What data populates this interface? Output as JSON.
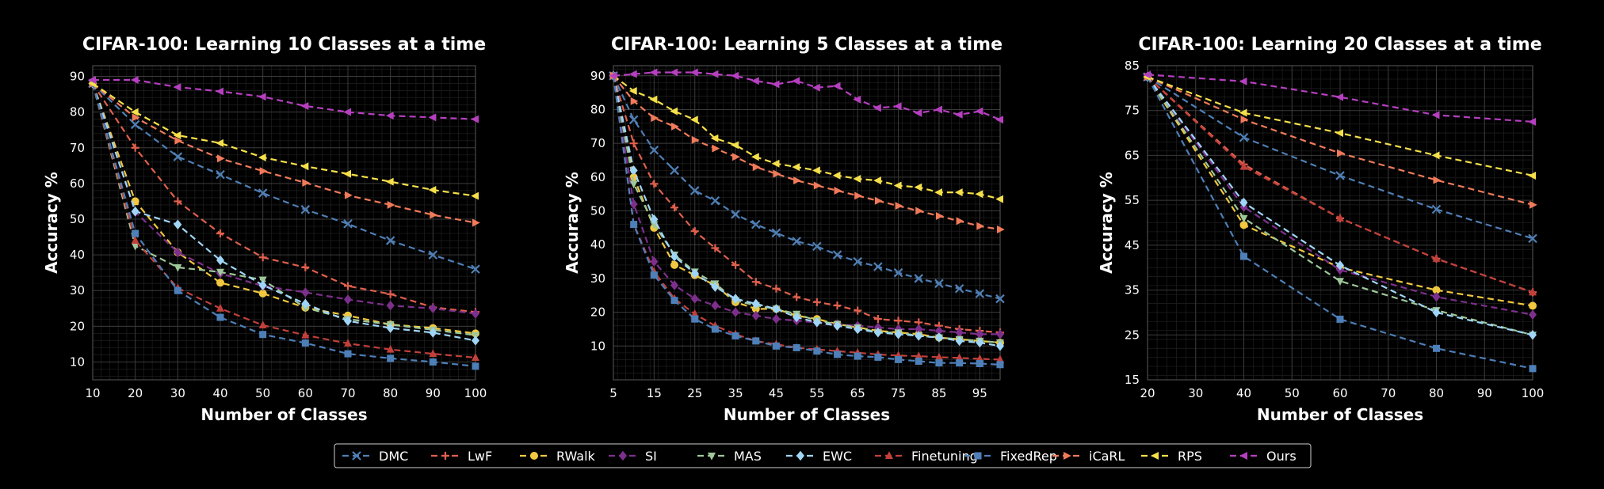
{
  "styles": [
    {
      "name": "DMC",
      "color": "#4f7fb5",
      "marker": "x",
      "dash": "8,5"
    },
    {
      "name": "LwF",
      "color": "#e0604d",
      "marker": "plus",
      "dash": "8,5"
    },
    {
      "name": "RWalk",
      "color": "#f1c83f",
      "marker": "circle",
      "dash": "8,5"
    },
    {
      "name": "SI",
      "color": "#7d2f8c",
      "marker": "diamond",
      "dash": "8,5"
    },
    {
      "name": "MAS",
      "color": "#9fc79a",
      "marker": "triangle-down",
      "dash": "8,5"
    },
    {
      "name": "EWC",
      "color": "#9fd5f7",
      "marker": "diamond",
      "dash": "8,5"
    },
    {
      "name": "Finetuning",
      "color": "#c1403b",
      "marker": "triangle-up",
      "dash": "8,5"
    },
    {
      "name": "FixedRep",
      "color": "#4d7fb8",
      "marker": "square",
      "dash": "8,5"
    },
    {
      "name": "iCaRL",
      "color": "#f07a5a",
      "marker": "triangle-right",
      "dash": "8,5"
    },
    {
      "name": "RPS",
      "color": "#f5e04a",
      "marker": "triangle-left",
      "dash": "8,5"
    },
    {
      "name": "Ours",
      "color": "#b63fc0",
      "marker": "triangle-left",
      "dash": "8,5"
    }
  ],
  "legend": {
    "placement": "bottom-center",
    "items": [
      "DMC",
      "LwF",
      "RWalk",
      "SI",
      "MAS",
      "EWC",
      "Finetuning",
      "FixedRep",
      "iCaRL",
      "RPS",
      "Ours"
    ]
  },
  "chart_data": [
    {
      "type": "line",
      "title": "CIFAR-100: Learning 10 Classes at a time",
      "xlabel": "Number of Classes",
      "ylabel": "Accuracy %",
      "xlim": [
        10,
        100
      ],
      "ylim": [
        5,
        93
      ],
      "xticks": [
        10,
        20,
        30,
        40,
        50,
        60,
        70,
        80,
        90,
        100
      ],
      "yticks": [
        10,
        20,
        30,
        40,
        50,
        60,
        70,
        80,
        90
      ],
      "grid": true,
      "x": [
        10,
        20,
        30,
        40,
        50,
        60,
        70,
        80,
        90,
        100
      ],
      "series": [
        {
          "name": "DMC",
          "values": [
            88,
            76.5,
            67.5,
            62.5,
            57.3,
            52.7,
            48.7,
            44,
            40,
            36
          ]
        },
        {
          "name": "LwF",
          "values": [
            88,
            70,
            55,
            46,
            39.3,
            36.5,
            31.3,
            29,
            25.3,
            24
          ]
        },
        {
          "name": "RWalk",
          "values": [
            88,
            55,
            40.7,
            32.2,
            29.2,
            25.2,
            23,
            20.5,
            19.5,
            18
          ]
        },
        {
          "name": "SI",
          "values": [
            88,
            52,
            40.7,
            34.8,
            31.3,
            29.5,
            27.5,
            25.8,
            25,
            23.5
          ]
        },
        {
          "name": "MAS",
          "values": [
            88,
            42.5,
            36.5,
            35.2,
            33,
            25.2,
            22,
            20.5,
            19,
            17.5
          ]
        },
        {
          "name": "EWC",
          "values": [
            88,
            52.2,
            48.5,
            38.5,
            31.5,
            26.3,
            21.5,
            19.5,
            18.2,
            16
          ]
        },
        {
          "name": "Finetuning",
          "values": [
            88,
            44,
            30.7,
            25,
            20.3,
            17.5,
            15.2,
            13.5,
            12.3,
            11.2
          ]
        },
        {
          "name": "FixedRep",
          "values": [
            88,
            46,
            30,
            22.5,
            17.7,
            15.3,
            12.3,
            11,
            10,
            8.8
          ]
        },
        {
          "name": "iCaRL",
          "values": [
            88,
            78.5,
            72,
            67,
            63.5,
            60.2,
            56.7,
            54,
            51.2,
            49
          ]
        },
        {
          "name": "RPS",
          "values": [
            88,
            80,
            73.5,
            71.3,
            67.3,
            64.8,
            62.7,
            60.5,
            58.2,
            56.5
          ]
        },
        {
          "name": "Ours",
          "values": [
            89,
            89,
            87,
            85.8,
            84.3,
            81.7,
            80,
            79,
            78.5,
            78
          ]
        }
      ]
    },
    {
      "type": "line",
      "title": "CIFAR-100: Learning 5 Classes at a time",
      "xlabel": "Number of Classes",
      "ylabel": "Accuracy %",
      "xlim": [
        5,
        100
      ],
      "ylim": [
        0,
        93
      ],
      "xticks": [
        5,
        15,
        25,
        35,
        45,
        55,
        65,
        75,
        85,
        95
      ],
      "yticks": [
        10,
        20,
        30,
        40,
        50,
        60,
        70,
        80,
        90
      ],
      "grid": true,
      "x": [
        5,
        10,
        15,
        20,
        25,
        30,
        35,
        40,
        45,
        50,
        55,
        60,
        65,
        70,
        75,
        80,
        85,
        90,
        95,
        100
      ],
      "series": [
        {
          "name": "DMC",
          "values": [
            90,
            77,
            68,
            62,
            56,
            53,
            49,
            46,
            43.5,
            41,
            39.5,
            37,
            35,
            33.5,
            31.7,
            30,
            28.5,
            27,
            25.5,
            24
          ]
        },
        {
          "name": "LwF",
          "values": [
            90,
            70,
            58,
            51,
            44,
            39,
            34,
            29,
            27,
            24.5,
            23,
            22,
            20.5,
            18,
            17.5,
            17,
            16,
            15,
            14.5,
            14
          ]
        },
        {
          "name": "RWalk",
          "values": [
            90,
            60,
            45,
            34,
            31,
            28,
            23,
            21,
            21,
            19,
            18,
            16.5,
            15.5,
            14.5,
            14,
            13.5,
            12.5,
            12,
            11.5,
            11
          ]
        },
        {
          "name": "SI",
          "values": [
            90,
            52,
            35,
            28,
            24,
            22,
            20,
            19,
            18,
            17.5,
            17,
            16.5,
            16,
            15.5,
            15,
            15,
            14.5,
            14,
            13.5,
            13.5
          ]
        },
        {
          "name": "MAS",
          "values": [
            90,
            58,
            46,
            37,
            32,
            28.5,
            23.5,
            22,
            21,
            19.5,
            17.5,
            16.5,
            15.5,
            14,
            14,
            13,
            12.5,
            12,
            11.5,
            11
          ]
        },
        {
          "name": "EWC",
          "values": [
            90,
            62,
            47.5,
            36.5,
            31.5,
            27.5,
            24,
            22.5,
            21,
            18.5,
            17,
            16,
            15,
            14,
            13.5,
            13,
            12.5,
            11.5,
            11,
            10
          ]
        },
        {
          "name": "Finetuning",
          "values": [
            90,
            46,
            32,
            24,
            19.5,
            16,
            13.5,
            11.5,
            10.5,
            9.5,
            9,
            8.5,
            8,
            7.5,
            7.2,
            7,
            6.7,
            6.5,
            6.2,
            6
          ]
        },
        {
          "name": "FixedRep",
          "values": [
            90,
            46,
            31,
            23.5,
            18,
            15,
            13,
            11.5,
            10,
            9.5,
            8.5,
            7.5,
            7,
            6.7,
            6,
            5.5,
            5,
            5,
            4.8,
            4.5
          ]
        },
        {
          "name": "iCaRL",
          "values": [
            90,
            82.5,
            77.5,
            75,
            71,
            68.5,
            66,
            63,
            61,
            59,
            57.5,
            56,
            54.5,
            53,
            51.5,
            50,
            48.5,
            47,
            45.5,
            44.5
          ]
        },
        {
          "name": "RPS",
          "values": [
            90,
            85.5,
            83,
            79.5,
            77,
            71.5,
            69.5,
            66,
            64,
            63,
            62,
            60.5,
            59.5,
            59,
            57.5,
            57,
            55.5,
            55.5,
            55,
            53.5
          ]
        },
        {
          "name": "Ours",
          "values": [
            90,
            90.5,
            91,
            91,
            91,
            90.5,
            90,
            88.5,
            87.5,
            88.5,
            86.5,
            87,
            83,
            80.5,
            81,
            79,
            80,
            78.5,
            79.5,
            77
          ]
        }
      ]
    },
    {
      "type": "line",
      "title": "CIFAR-100: Learning 20 Classes at a time",
      "xlabel": "Number of Classes",
      "ylabel": "Accuracy %",
      "xlim": [
        20,
        100
      ],
      "ylim": [
        15,
        85
      ],
      "xticks": [
        20,
        30,
        40,
        50,
        60,
        70,
        80,
        90,
        100
      ],
      "yticks": [
        15,
        25,
        35,
        45,
        55,
        65,
        75,
        85
      ],
      "grid": true,
      "x": [
        20,
        40,
        60,
        80,
        100
      ],
      "series": [
        {
          "name": "DMC",
          "values": [
            82.5,
            69,
            60.5,
            53,
            46.5
          ]
        },
        {
          "name": "LwF",
          "values": [
            82.5,
            63,
            51,
            42,
            34.5
          ]
        },
        {
          "name": "RWalk",
          "values": [
            82.5,
            49.5,
            40,
            35,
            31.5
          ]
        },
        {
          "name": "SI",
          "values": [
            82.5,
            53.5,
            39.5,
            33.5,
            29.5
          ]
        },
        {
          "name": "MAS",
          "values": [
            82.5,
            51,
            37,
            30.5,
            25
          ]
        },
        {
          "name": "EWC",
          "values": [
            82.5,
            54.5,
            40.5,
            30,
            25
          ]
        },
        {
          "name": "Finetuning",
          "values": [
            82.5,
            62.5,
            51,
            42,
            34.5
          ]
        },
        {
          "name": "FixedRep",
          "values": [
            82.5,
            42.5,
            28.5,
            22,
            17.5
          ]
        },
        {
          "name": "iCaRL",
          "values": [
            82.5,
            73,
            65.5,
            59.5,
            54
          ]
        },
        {
          "name": "RPS",
          "values": [
            82.5,
            74.5,
            70,
            65,
            60.5
          ]
        },
        {
          "name": "Ours",
          "values": [
            83,
            81.5,
            78,
            74,
            72.5
          ]
        }
      ]
    }
  ]
}
